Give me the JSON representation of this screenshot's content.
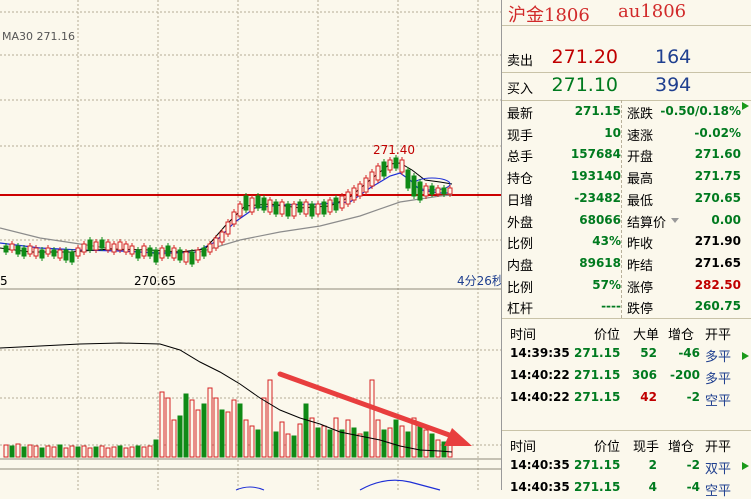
{
  "colors": {
    "up": "#d42424",
    "down": "#0f8a16",
    "ma1": "#000000",
    "ma2": "#1e2fd6",
    "ma3": "#8c8c8c",
    "refline": "#cc0000",
    "arrow": "#e83e3e"
  },
  "chart": {
    "ma_label": "MA30 271.16",
    "high_label": "271.40",
    "low_label": "270.65",
    "left_partial_label": "5",
    "time_label": "4分26秒"
  },
  "panel": {
    "title_cn": "沪金1806",
    "title_code": "au1806",
    "sell": {
      "label": "卖出",
      "price": "271.20",
      "qty": "164"
    },
    "buy": {
      "label": "买入",
      "price": "271.10",
      "qty": "394"
    },
    "stats_left": [
      {
        "label": "最新",
        "value": "271.15",
        "color": "grn"
      },
      {
        "label": "现手",
        "value": "10",
        "color": "grn"
      },
      {
        "label": "总手",
        "value": "157684",
        "color": "grn"
      },
      {
        "label": "持仓",
        "value": "193140",
        "color": "grn"
      },
      {
        "label": "日增",
        "value": "-23482",
        "color": "grn"
      },
      {
        "label": "外盘",
        "value": "68066",
        "color": "grn"
      },
      {
        "label": "比例",
        "value": "43%",
        "color": "grn"
      },
      {
        "label": "内盘",
        "value": "89618",
        "color": "grn"
      },
      {
        "label": "比例",
        "value": "57%",
        "color": "grn"
      },
      {
        "label": "杠杆",
        "value": "----",
        "color": "grn"
      }
    ],
    "stats_right": [
      {
        "label": "涨跌",
        "value": "-0.50/0.18%",
        "color": "grn"
      },
      {
        "label": "速涨",
        "value": "-0.02%",
        "color": "grn"
      },
      {
        "label": "开盘",
        "value": "271.60",
        "color": "grn"
      },
      {
        "label": "最高",
        "value": "271.75",
        "color": "grn"
      },
      {
        "label": "最低",
        "value": "270.65",
        "color": "grn"
      },
      {
        "label": "结算价",
        "value": "0.00",
        "color": "grn"
      },
      {
        "label": "昨收",
        "value": "271.90",
        "color": "blk"
      },
      {
        "label": "昨结",
        "value": "271.65",
        "color": "blk"
      },
      {
        "label": "涨停",
        "value": "282.50",
        "color": "red"
      },
      {
        "label": "跌停",
        "value": "260.75",
        "color": "grn"
      }
    ],
    "trades_header": {
      "time": "时间",
      "price": "价位",
      "big": "大单",
      "oi": "增仓",
      "open_close": "开平"
    },
    "trades": [
      {
        "time": "14:39:35",
        "price": "271.15",
        "vol": "52",
        "vol_color": "grn",
        "oi": "-46",
        "oc": "多平",
        "oc_color": "blu"
      },
      {
        "time": "14:40:22",
        "price": "271.15",
        "vol": "306",
        "vol_color": "grn",
        "oi": "-200",
        "oc": "多平",
        "oc_color": "blu"
      },
      {
        "time": "14:40:22",
        "price": "271.15",
        "vol": "42",
        "vol_color": "red",
        "oi": "-2",
        "oc": "空平",
        "oc_color": "blu"
      }
    ],
    "ticks_header": {
      "time": "时间",
      "price": "价位",
      "vol": "现手",
      "oi": "增仓",
      "open_close": "开平"
    },
    "ticks": [
      {
        "time": "14:40:35",
        "price": "271.15",
        "vol": "2",
        "vol_color": "grn",
        "oi": "-2",
        "oc": "双平",
        "oc_color": "blu"
      },
      {
        "time": "14:40:35",
        "price": "271.15",
        "vol": "4",
        "vol_color": "grn",
        "oi": "-4",
        "oc": "空平",
        "oc_color": "blu"
      }
    ]
  }
}
